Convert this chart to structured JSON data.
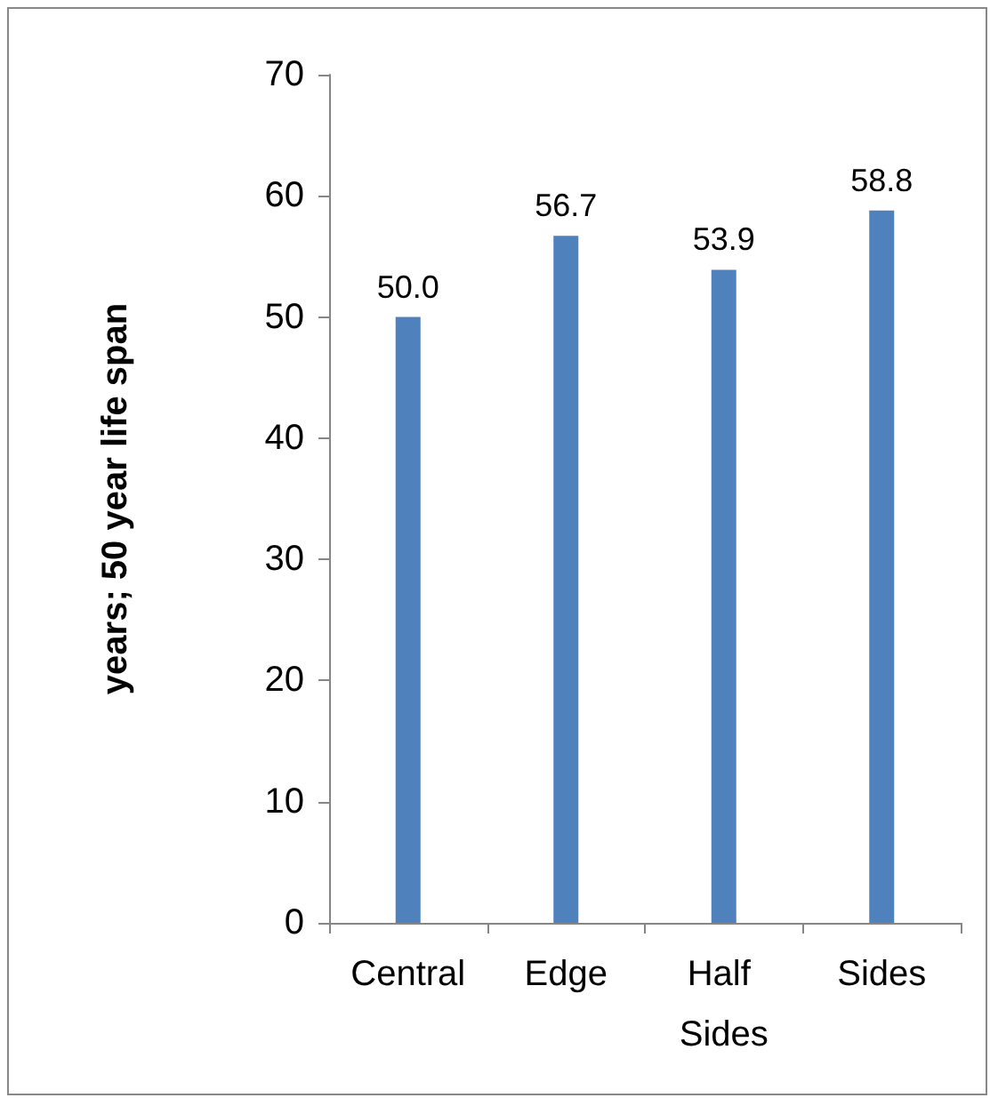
{
  "chart_data": {
    "type": "bar",
    "ylabel": "years; 50 year life span",
    "categories": [
      "Central",
      "Edge",
      "Half Sides",
      "Sides"
    ],
    "values": [
      50.0,
      56.7,
      53.9,
      58.8
    ],
    "value_labels": [
      "50.0",
      "56.7",
      "53.9",
      "58.8"
    ],
    "color": "#4f81bd",
    "ylim": [
      0,
      70
    ],
    "yticks": [
      0,
      10,
      20,
      30,
      40,
      50,
      60,
      70
    ],
    "grid": false
  }
}
